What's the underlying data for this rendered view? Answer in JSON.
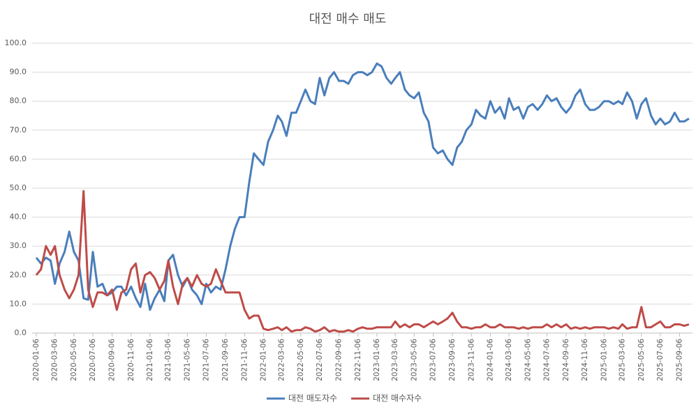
{
  "chart_data": {
    "type": "line",
    "title": "대전 매수 매도",
    "x": [
      "2020-01-06",
      "2020-01-21",
      "2020-02-06",
      "2020-02-21",
      "2020-03-06",
      "2020-03-21",
      "2020-04-06",
      "2020-04-21",
      "2020-05-06",
      "2020-05-21",
      "2020-06-06",
      "2020-06-21",
      "2020-07-06",
      "2020-07-21",
      "2020-08-06",
      "2020-08-21",
      "2020-09-06",
      "2020-09-21",
      "2020-10-06",
      "2020-10-21",
      "2020-11-06",
      "2020-11-21",
      "2020-12-06",
      "2020-12-21",
      "2021-01-06",
      "2021-01-21",
      "2021-02-06",
      "2021-02-21",
      "2021-03-06",
      "2021-03-21",
      "2021-04-06",
      "2021-04-21",
      "2021-05-06",
      "2021-05-21",
      "2021-06-06",
      "2021-06-21",
      "2021-07-06",
      "2021-07-21",
      "2021-08-06",
      "2021-08-21",
      "2021-09-06",
      "2021-09-21",
      "2021-10-06",
      "2021-10-21",
      "2021-11-06",
      "2021-11-21",
      "2021-12-06",
      "2021-12-21",
      "2022-01-06",
      "2022-01-21",
      "2022-02-06",
      "2022-02-21",
      "2022-03-06",
      "2022-03-21",
      "2022-04-06",
      "2022-04-21",
      "2022-05-06",
      "2022-05-21",
      "2022-06-06",
      "2022-06-21",
      "2022-07-06",
      "2022-07-21",
      "2022-08-06",
      "2022-08-21",
      "2022-09-06",
      "2022-09-21",
      "2022-10-06",
      "2022-10-21",
      "2022-11-06",
      "2022-11-21",
      "2022-12-06",
      "2022-12-21",
      "2023-01-06",
      "2023-01-21",
      "2023-02-06",
      "2023-02-21",
      "2023-03-06",
      "2023-03-21",
      "2023-04-06",
      "2023-04-21",
      "2023-05-06",
      "2023-05-21",
      "2023-06-06",
      "2023-06-21",
      "2023-07-06",
      "2023-07-21",
      "2023-08-06",
      "2023-08-21",
      "2023-09-06",
      "2023-09-21",
      "2023-10-06",
      "2023-10-21",
      "2023-11-06",
      "2023-11-21",
      "2023-12-06",
      "2023-12-21",
      "2024-01-06",
      "2024-01-21",
      "2024-02-06",
      "2024-02-21",
      "2024-03-06",
      "2024-03-21",
      "2024-04-06",
      "2024-04-21",
      "2024-05-06",
      "2024-05-21",
      "2024-06-06",
      "2024-06-21",
      "2024-07-06",
      "2024-07-21",
      "2024-08-06",
      "2024-08-21",
      "2024-09-06",
      "2024-09-21",
      "2024-10-06",
      "2024-10-21",
      "2024-11-06",
      "2024-11-21",
      "2024-12-06",
      "2024-12-21",
      "2025-01-06",
      "2025-01-21",
      "2025-02-06",
      "2025-02-21",
      "2025-03-06",
      "2025-03-21",
      "2025-04-06",
      "2025-04-21",
      "2025-05-06",
      "2025-05-21",
      "2025-06-06",
      "2025-06-21",
      "2025-07-06",
      "2025-07-21",
      "2025-08-06",
      "2025-08-21",
      "2025-09-06",
      "2025-09-21",
      "2025-10-06"
    ],
    "series": [
      {
        "name": "대전 매도자수",
        "color": "#4a7ebb",
        "values": [
          26,
          24,
          26,
          25,
          17,
          24,
          28,
          35,
          28,
          25,
          12,
          11.5,
          28,
          16,
          17,
          13,
          14,
          16,
          16,
          13,
          16,
          12,
          9,
          17,
          8,
          12,
          15,
          11,
          25,
          27,
          20,
          16,
          19,
          15,
          13,
          10,
          17,
          14,
          16,
          15,
          22,
          30,
          36,
          40,
          40,
          52,
          62,
          60,
          58,
          66,
          70,
          75,
          73,
          68,
          76,
          76,
          80,
          84,
          80,
          79,
          88,
          82,
          88,
          90,
          87,
          87,
          86,
          89,
          90,
          90,
          89,
          90,
          93,
          92,
          88,
          86,
          88,
          90,
          84,
          82,
          81,
          83,
          76,
          73,
          64,
          62,
          63,
          60,
          58,
          64,
          66,
          70,
          72,
          77,
          75,
          74,
          80,
          76,
          78,
          74,
          81,
          77,
          78,
          74,
          78,
          79,
          77,
          79,
          82,
          80,
          81,
          78,
          76,
          78,
          82,
          84,
          79,
          77,
          77,
          78,
          80,
          80,
          79,
          80,
          79,
          83,
          80,
          74,
          79,
          81,
          75,
          72,
          74,
          72,
          73,
          76,
          73,
          73,
          74
        ]
      },
      {
        "name": "대전 매수자수",
        "color": "#be4b48",
        "values": [
          20,
          22,
          30,
          27,
          30,
          20,
          15,
          12,
          15,
          20,
          49,
          15,
          9,
          14,
          14,
          13,
          15,
          8,
          14,
          15,
          22,
          24,
          14,
          20,
          21,
          19,
          15,
          18,
          25,
          16,
          10,
          17,
          19,
          16,
          20,
          17,
          16,
          17,
          22,
          18,
          14,
          14,
          14,
          14,
          8,
          5,
          6,
          6,
          1.5,
          1,
          1.5,
          2,
          1,
          2,
          0.5,
          1,
          1,
          2,
          1.5,
          0.5,
          1,
          2,
          0.5,
          1,
          0.5,
          0.5,
          1,
          0.5,
          1.5,
          2,
          1.5,
          1.5,
          2,
          2,
          2,
          2,
          4,
          2,
          3,
          2,
          3,
          3,
          2,
          3,
          4,
          3,
          4,
          5,
          7,
          4,
          2,
          2,
          1.5,
          2,
          2,
          3,
          2,
          2,
          3,
          2,
          2,
          2,
          1.5,
          2,
          1.5,
          2,
          2,
          2,
          3,
          2,
          3,
          2,
          3,
          1.5,
          2,
          1.5,
          2,
          1.5,
          2,
          2,
          2,
          1.5,
          2,
          1.5,
          3,
          1.5,
          2,
          2,
          9,
          2,
          2,
          3,
          4,
          2,
          2,
          3,
          3,
          2.5,
          3
        ]
      }
    ],
    "xlim": [
      "2020-01-06",
      "2025-10-13"
    ],
    "xticks": [
      "2020-01-06",
      "2020-03-06",
      "2020-05-06",
      "2020-07-06",
      "2020-09-06",
      "2020-11-06",
      "2021-01-06",
      "2021-03-06",
      "2021-05-06",
      "2021-07-06",
      "2021-09-06",
      "2021-11-06",
      "2022-01-06",
      "2022-03-06",
      "2022-05-06",
      "2022-07-06",
      "2022-09-06",
      "2022-11-06",
      "2023-01-06",
      "2023-03-06",
      "2023-05-06",
      "2023-07-06",
      "2023-09-06",
      "2023-11-06",
      "2024-01-06",
      "2024-03-06",
      "2024-05-06",
      "2024-07-06",
      "2024-09-06",
      "2024-11-06",
      "2025-01-06",
      "2025-03-06",
      "2025-05-06",
      "2025-07-06",
      "2025-09-06"
    ],
    "ylim": [
      0,
      100
    ],
    "yticks": [
      {
        "value": 0,
        "label": "0.0"
      },
      {
        "value": 10,
        "label": "10.0"
      },
      {
        "value": 20,
        "label": "20.0"
      },
      {
        "value": 30,
        "label": "30.0"
      },
      {
        "value": 40,
        "label": "40.0"
      },
      {
        "value": 50,
        "label": "50.0"
      },
      {
        "value": 60,
        "label": "60.0"
      },
      {
        "value": 70,
        "label": "70.0"
      },
      {
        "value": 80,
        "label": "80.0"
      },
      {
        "value": 90,
        "label": "90.0"
      },
      {
        "value": 100,
        "label": "100.0"
      }
    ],
    "grid": true,
    "legend": "bottom"
  }
}
